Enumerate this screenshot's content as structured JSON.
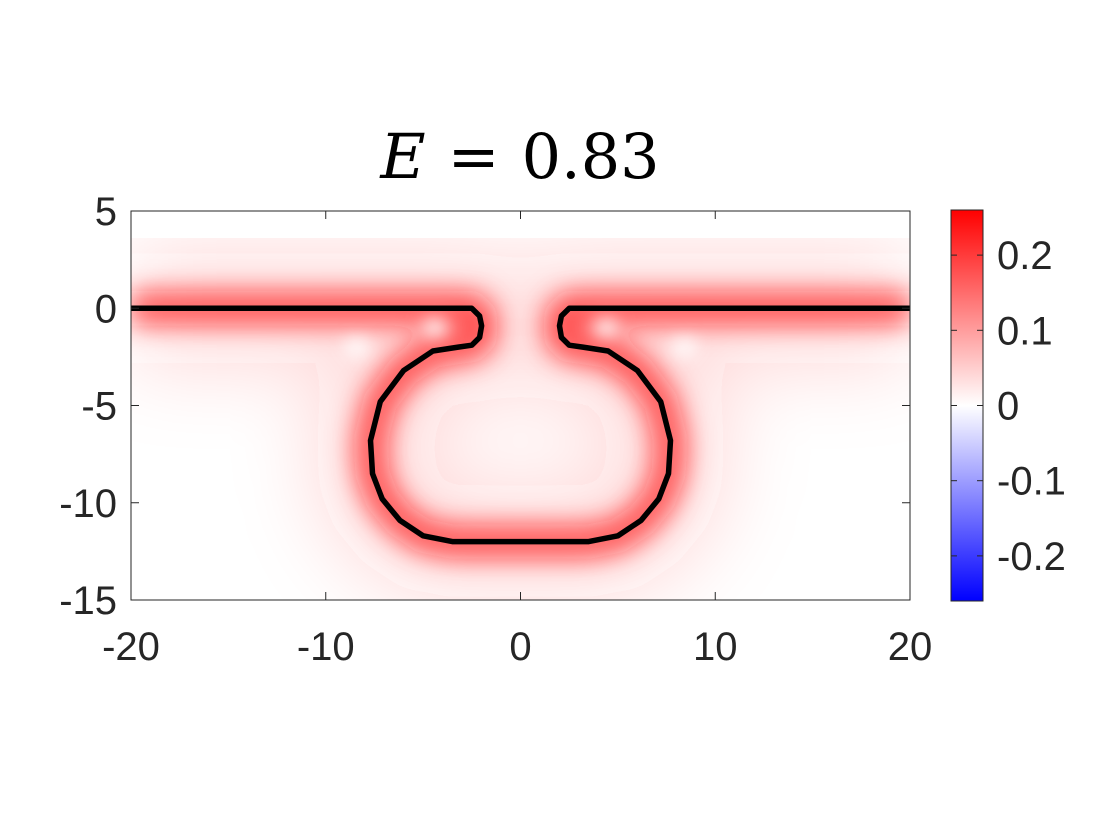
{
  "chart_data": {
    "type": "heatmap",
    "title": {
      "variable": "E",
      "operator": "=",
      "value": "0.83"
    },
    "xlabel": "",
    "ylabel": "",
    "xlim": [
      -20,
      20
    ],
    "ylim": [
      -15,
      5
    ],
    "x_ticks": [
      {
        "value": -20,
        "label": "-20"
      },
      {
        "value": -10,
        "label": "-10"
      },
      {
        "value": 0,
        "label": "0"
      },
      {
        "value": 10,
        "label": "10"
      },
      {
        "value": 20,
        "label": "20"
      }
    ],
    "y_ticks": [
      {
        "value": 5,
        "label": "5"
      },
      {
        "value": 0,
        "label": "0"
      },
      {
        "value": -5,
        "label": "-5"
      },
      {
        "value": -10,
        "label": "-10"
      },
      {
        "value": -15,
        "label": "-15"
      }
    ],
    "colorbar": {
      "limits": [
        -0.26,
        0.26
      ],
      "colormap": [
        "#0000ff",
        "#ffffff",
        "#ff0000"
      ],
      "ticks": [
        {
          "value": 0.2,
          "label": "0.2"
        },
        {
          "value": 0.1,
          "label": "0.1"
        },
        {
          "value": 0,
          "label": "0"
        },
        {
          "value": -0.1,
          "label": "-0.1"
        },
        {
          "value": -0.2,
          "label": "-0.2"
        }
      ]
    },
    "boundary_curve": {
      "color": "#000000",
      "points": [
        [
          -20,
          0
        ],
        [
          -2.5,
          0
        ],
        [
          -2.1,
          -0.4
        ],
        [
          -2.0,
          -0.9
        ],
        [
          -2.1,
          -1.5
        ],
        [
          -2.5,
          -1.9
        ],
        [
          -3.2,
          -2.0
        ],
        [
          -4.5,
          -2.2
        ],
        [
          -6.0,
          -3.2
        ],
        [
          -7.2,
          -4.8
        ],
        [
          -7.7,
          -6.8
        ],
        [
          -7.6,
          -8.5
        ],
        [
          -7.1,
          -9.8
        ],
        [
          -6.2,
          -10.9
        ],
        [
          -5.0,
          -11.7
        ],
        [
          -3.5,
          -12.0
        ],
        [
          3.5,
          -12.0
        ],
        [
          5.0,
          -11.7
        ],
        [
          6.2,
          -10.9
        ],
        [
          7.1,
          -9.8
        ],
        [
          7.6,
          -8.5
        ],
        [
          7.7,
          -6.8
        ],
        [
          7.2,
          -4.8
        ],
        [
          6.0,
          -3.2
        ],
        [
          4.5,
          -2.2
        ],
        [
          3.2,
          -2.0
        ],
        [
          2.5,
          -1.9
        ],
        [
          2.1,
          -1.5
        ],
        [
          2.0,
          -0.9
        ],
        [
          2.1,
          -0.4
        ],
        [
          2.5,
          0
        ],
        [
          20,
          0
        ]
      ]
    }
  }
}
